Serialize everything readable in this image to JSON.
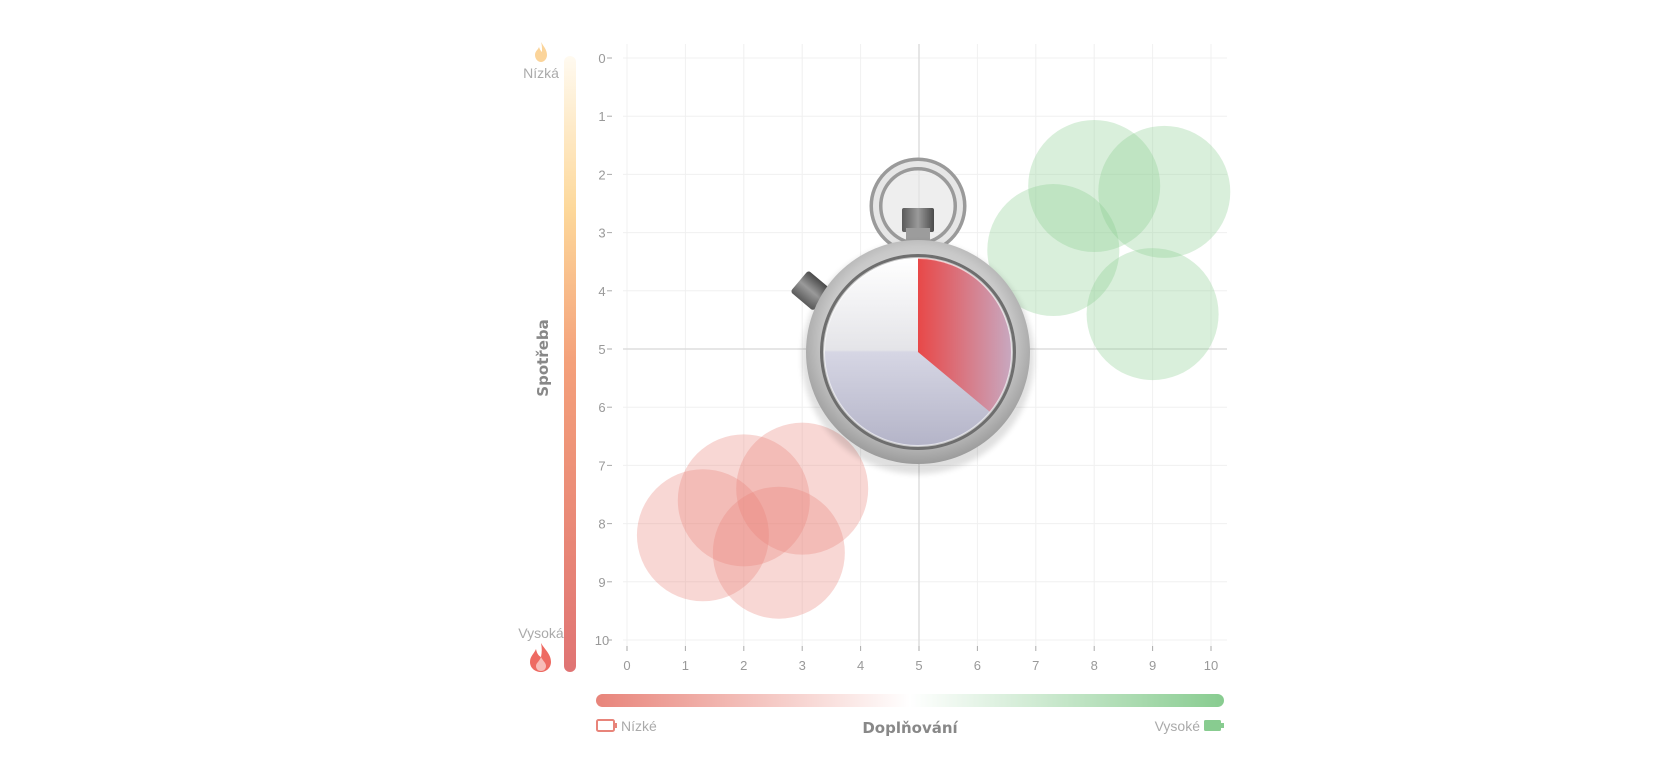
{
  "chart_data": {
    "type": "scatter",
    "title": "",
    "xlabel": "Doplňování",
    "ylabel": "Spotřeba",
    "xlim": [
      0,
      10
    ],
    "ylim": [
      0,
      10
    ],
    "y_reversed": true,
    "x_ticks": [
      0,
      1,
      2,
      3,
      4,
      5,
      6,
      7,
      8,
      9,
      10
    ],
    "y_ticks": [
      0,
      1,
      2,
      3,
      4,
      5,
      6,
      7,
      8,
      9,
      10
    ],
    "grid": true,
    "quadrant_lines": {
      "x": 5,
      "y": 5
    },
    "y_scale_labels": {
      "low": "Nízká",
      "high": "Vysoká"
    },
    "x_scale_labels": {
      "low": "Nízké",
      "high": "Vysoké"
    },
    "series": [
      {
        "color": "#e8847a",
        "points": [
          {
            "x": 1.3,
            "y": 8.2
          },
          {
            "x": 2.0,
            "y": 7.6
          },
          {
            "x": 2.6,
            "y": 8.5
          },
          {
            "x": 3.0,
            "y": 7.4
          }
        ]
      },
      {
        "color": "#88cc90",
        "points": [
          {
            "x": 7.3,
            "y": 3.3
          },
          {
            "x": 8.0,
            "y": 2.2
          },
          {
            "x": 9.0,
            "y": 4.4
          },
          {
            "x": 9.2,
            "y": 2.3
          }
        ]
      }
    ],
    "center_icon": "stopwatch-icon"
  },
  "colors": {
    "red": "#e8847a",
    "green": "#88cc90",
    "amber": "#fde2b0",
    "grid": "#f0f0f0",
    "quadrant_line": "#dddddd"
  },
  "icons": {
    "y_low": "flame-light-icon",
    "y_high": "flame-red-icon",
    "x_low": "battery-empty-icon",
    "x_high": "battery-full-icon"
  }
}
